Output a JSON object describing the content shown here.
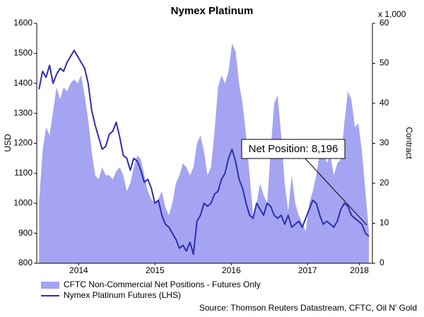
{
  "chart_data": {
    "type": "area-line",
    "title": "Nymex Platinum",
    "y_label": "USD",
    "y2_label": "Contract",
    "y2_unit": "x 1,000",
    "source": "Source: Thomson Reuters Datastream, CFTC, Oil N' Gold",
    "annotation": "Net Position: 8,196",
    "x": [
      2013.98,
      2014.026,
      2014.072,
      2014.118,
      2014.164,
      2014.21,
      2014.256,
      2014.302,
      2014.348,
      2014.394,
      2014.44,
      2014.486,
      2014.532,
      2014.578,
      2014.624,
      2014.67,
      2014.716,
      2014.762,
      2014.808,
      2014.854,
      2014.9,
      2014.946,
      2014.992,
      2015.038,
      2015.084,
      2015.13,
      2015.176,
      2015.222,
      2015.268,
      2015.314,
      2015.36,
      2015.406,
      2015.452,
      2015.498,
      2015.544,
      2015.59,
      2015.636,
      2015.682,
      2015.728,
      2015.774,
      2015.82,
      2015.866,
      2015.912,
      2015.958,
      2016.004,
      2016.05,
      2016.096,
      2016.142,
      2016.188,
      2016.234,
      2016.28,
      2016.326,
      2016.372,
      2016.418,
      2016.464,
      2016.51,
      2016.556,
      2016.602,
      2016.648,
      2016.694,
      2016.74,
      2016.786,
      2016.832,
      2016.878,
      2016.924,
      2016.97,
      2017.016,
      2017.062,
      2017.108,
      2017.154,
      2017.2,
      2017.246,
      2017.292,
      2017.338,
      2017.384,
      2017.43,
      2017.476,
      2017.522,
      2017.568,
      2017.614,
      2017.66,
      2017.706,
      2017.752,
      2017.798,
      2017.844,
      2017.89,
      2017.936,
      2017.982,
      2018.028,
      2018.074,
      2018.12,
      2018.166,
      2018.212,
      2018.258,
      2018.304
    ],
    "series": [
      {
        "name": "CFTC Non-Commercial Net Positions - Futures Only",
        "type": "area",
        "axis": "y2",
        "color": "#a4a4f2",
        "values": [
          15,
          28,
          34,
          32,
          38,
          44,
          41,
          44,
          43,
          45,
          46,
          45,
          47,
          42,
          36,
          28,
          22,
          21,
          24,
          22,
          22,
          21,
          23,
          24,
          22,
          18,
          20,
          24,
          27,
          26,
          22,
          18,
          16,
          15,
          16,
          18,
          14,
          12,
          15,
          20,
          22,
          25,
          24,
          22,
          24,
          30,
          32,
          28,
          22,
          24,
          33,
          44,
          47,
          45,
          48,
          55,
          53,
          45,
          40,
          32,
          22,
          12,
          15,
          20,
          17,
          15,
          28,
          40,
          42,
          32,
          20,
          13,
          22,
          15,
          12,
          10,
          8,
          15,
          18,
          22,
          28,
          30,
          25,
          27,
          22,
          25,
          26,
          35,
          43,
          41,
          34,
          35,
          28,
          18,
          8
        ]
      },
      {
        "name": "Nymex Platinum Futures (LHS)",
        "type": "line",
        "axis": "y",
        "color": "#2e2eab",
        "values": [
          1380,
          1440,
          1420,
          1460,
          1400,
          1430,
          1450,
          1440,
          1470,
          1490,
          1510,
          1490,
          1470,
          1450,
          1400,
          1310,
          1260,
          1220,
          1180,
          1190,
          1230,
          1240,
          1270,
          1220,
          1160,
          1150,
          1110,
          1150,
          1140,
          1110,
          1070,
          1080,
          1050,
          1000,
          1010,
          960,
          930,
          920,
          900,
          880,
          850,
          860,
          840,
          870,
          830,
          940,
          960,
          1000,
          990,
          1000,
          1030,
          1040,
          1080,
          1100,
          1150,
          1180,
          1140,
          1080,
          1050,
          1000,
          960,
          950,
          1000,
          980,
          960,
          1000,
          990,
          960,
          950,
          960,
          930,
          960,
          920,
          930,
          940,
          920,
          950,
          980,
          1010,
          1000,
          960,
          930,
          940,
          930,
          920,
          940,
          980,
          1000,
          990,
          960,
          950,
          940,
          930,
          900,
          890
        ]
      }
    ],
    "xlim": [
      2013.95,
      2018.35
    ],
    "xticks": [
      {
        "value": 2014.5,
        "label": "2014"
      },
      {
        "value": 2015.5,
        "label": "2015"
      },
      {
        "value": 2016.5,
        "label": "2016"
      },
      {
        "value": 2017.5,
        "label": "2017"
      },
      {
        "value": 2018.18,
        "label": "2018"
      }
    ],
    "ylim": [
      800,
      1600
    ],
    "yticks": [
      800,
      900,
      1000,
      1100,
      1200,
      1300,
      1400,
      1500,
      1600
    ],
    "y2lim": [
      0,
      60
    ],
    "y2ticks": [
      0,
      10,
      20,
      30,
      40,
      50,
      60
    ]
  }
}
